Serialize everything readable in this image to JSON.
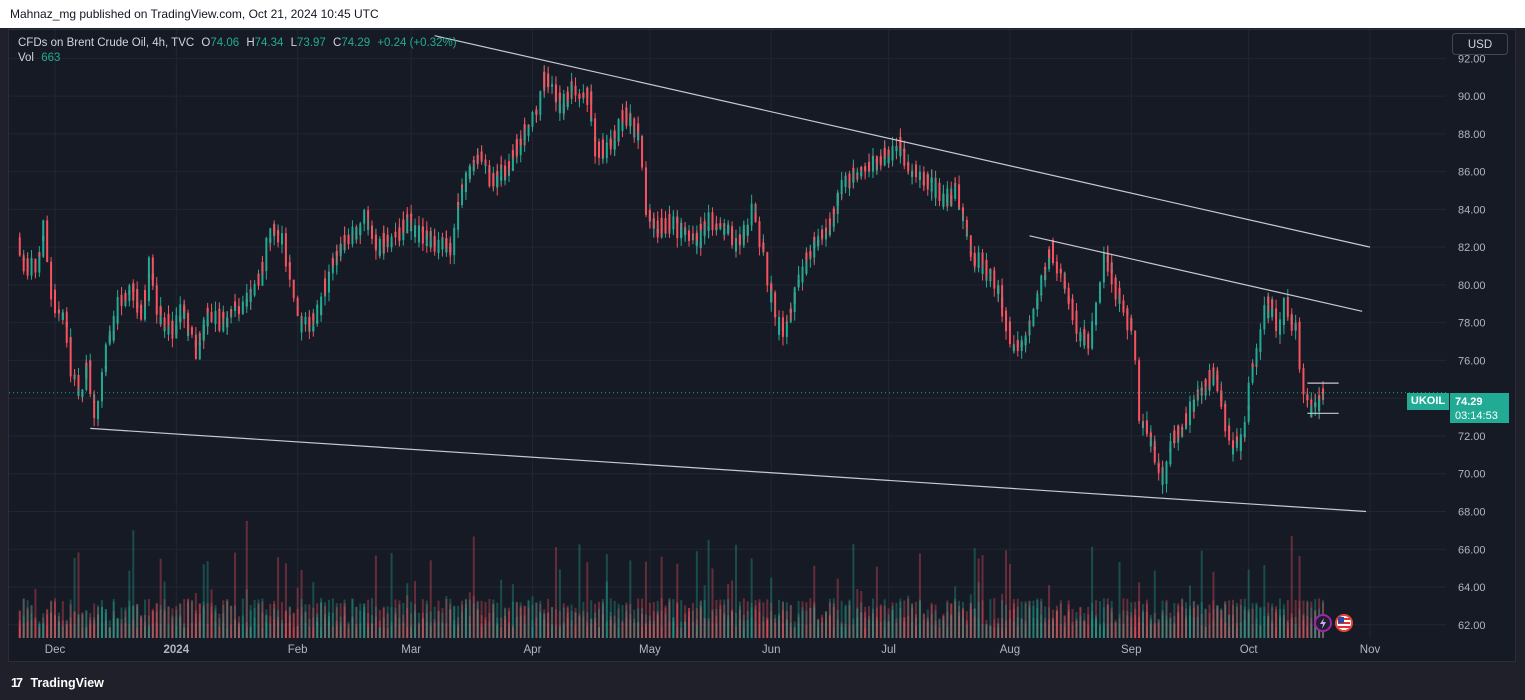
{
  "header": {
    "attribution": "Mahnaz_mg published on TradingView.com, Oct 21, 2024 10:45 UTC"
  },
  "legend": {
    "symbol": "CFDs on Brent Crude Oil, 4h, TVC",
    "open_label": "O",
    "open": "74.06",
    "high_label": "H",
    "high": "74.34",
    "low_label": "L",
    "low": "73.97",
    "close_label": "C",
    "close": "74.29",
    "change": "+0.24 (+0.32%)",
    "vol_label": "Vol",
    "vol": "663"
  },
  "toolbar": {
    "currency": "USD"
  },
  "price_label": {
    "ticker": "UKOIL",
    "price": "74.29",
    "countdown": "03:14:53"
  },
  "footer": {
    "brand": "TradingView"
  },
  "colors": {
    "up": "#22ab94",
    "down": "#f7525f",
    "background": "#161a25",
    "trendline": "#c8c8d0"
  },
  "icons": {
    "badge_1": "lightning-icon",
    "badge_2": "us-flag-icon"
  },
  "chart_data": {
    "type": "candlestick",
    "y_axis": {
      "ticks": [
        62,
        64,
        66,
        68,
        70,
        72,
        74,
        76,
        78,
        80,
        82,
        84,
        86,
        88,
        90,
        92
      ],
      "range": [
        61.3,
        93.5
      ],
      "position": "right"
    },
    "x_axis": {
      "ticks": [
        "Dec",
        "2024",
        "Feb",
        "Mar",
        "Apr",
        "May",
        "Jun",
        "Jul",
        "Aug",
        "Sep",
        "Oct",
        "Nov"
      ]
    },
    "last_price": 74.29,
    "price_path": [
      [
        "2023-11-22",
        82.5
      ],
      [
        "2023-11-24",
        81.0
      ],
      [
        "2023-11-27",
        80.8
      ],
      [
        "2023-11-29",
        83.3
      ],
      [
        "2023-12-01",
        79.2
      ],
      [
        "2023-12-04",
        78.5
      ],
      [
        "2023-12-06",
        75.5
      ],
      [
        "2023-12-08",
        74.2
      ],
      [
        "2023-12-10",
        75.8
      ],
      [
        "2023-12-12",
        73.0
      ],
      [
        "2023-12-14",
        75.5
      ],
      [
        "2023-12-16",
        77.5
      ],
      [
        "2023-12-19",
        79.5
      ],
      [
        "2023-12-21",
        79.8
      ],
      [
        "2023-12-24",
        78.5
      ],
      [
        "2023-12-26",
        81.0
      ],
      [
        "2023-12-28",
        78.5
      ],
      [
        "2024-01-01",
        77.5
      ],
      [
        "2024-01-03",
        78.5
      ],
      [
        "2024-01-07",
        76.5
      ],
      [
        "2024-01-10",
        78.8
      ],
      [
        "2024-01-13",
        78.0
      ],
      [
        "2024-01-16",
        78.5
      ],
      [
        "2024-01-19",
        79.0
      ],
      [
        "2024-01-23",
        80.5
      ],
      [
        "2024-01-26",
        83.0
      ],
      [
        "2024-01-29",
        82.5
      ],
      [
        "2024-02-02",
        77.8
      ],
      [
        "2024-02-06",
        78.0
      ],
      [
        "2024-02-08",
        79.5
      ],
      [
        "2024-02-12",
        82.0
      ],
      [
        "2024-02-15",
        82.5
      ],
      [
        "2024-02-19",
        83.5
      ],
      [
        "2024-02-22",
        82.0
      ],
      [
        "2024-02-26",
        82.5
      ],
      [
        "2024-03-01",
        83.3
      ],
      [
        "2024-03-05",
        82.5
      ],
      [
        "2024-03-08",
        82.0
      ],
      [
        "2024-03-12",
        82.0
      ],
      [
        "2024-03-15",
        85.3
      ],
      [
        "2024-03-19",
        87.0
      ],
      [
        "2024-03-22",
        85.5
      ],
      [
        "2024-03-26",
        86.0
      ],
      [
        "2024-03-29",
        87.5
      ],
      [
        "2024-04-03",
        89.5
      ],
      [
        "2024-04-05",
        91.0
      ],
      [
        "2024-04-09",
        89.5
      ],
      [
        "2024-04-12",
        90.5
      ],
      [
        "2024-04-16",
        90.0
      ],
      [
        "2024-04-18",
        87.0
      ],
      [
        "2024-04-22",
        87.5
      ],
      [
        "2024-04-25",
        89.0
      ],
      [
        "2024-04-29",
        88.0
      ],
      [
        "2024-05-01",
        84.0
      ],
      [
        "2024-05-03",
        83.0
      ],
      [
        "2024-05-07",
        83.3
      ],
      [
        "2024-05-10",
        82.8
      ],
      [
        "2024-05-14",
        82.5
      ],
      [
        "2024-05-17",
        83.5
      ],
      [
        "2024-05-21",
        82.8
      ],
      [
        "2024-05-24",
        82.0
      ],
      [
        "2024-05-28",
        84.0
      ],
      [
        "2024-05-31",
        81.5
      ],
      [
        "2024-06-03",
        78.0
      ],
      [
        "2024-06-05",
        77.5
      ],
      [
        "2024-06-08",
        79.8
      ],
      [
        "2024-06-12",
        82.0
      ],
      [
        "2024-06-16",
        82.8
      ],
      [
        "2024-06-20",
        85.5
      ],
      [
        "2024-06-24",
        86.0
      ],
      [
        "2024-06-27",
        86.3
      ],
      [
        "2024-07-01",
        86.8
      ],
      [
        "2024-07-04",
        87.5
      ],
      [
        "2024-07-08",
        86.0
      ],
      [
        "2024-07-12",
        85.3
      ],
      [
        "2024-07-16",
        84.5
      ],
      [
        "2024-07-19",
        85.0
      ],
      [
        "2024-07-23",
        81.5
      ],
      [
        "2024-07-26",
        81.0
      ],
      [
        "2024-07-30",
        79.5
      ],
      [
        "2024-08-02",
        77.0
      ],
      [
        "2024-08-05",
        76.5
      ],
      [
        "2024-08-08",
        79.0
      ],
      [
        "2024-08-12",
        82.0
      ],
      [
        "2024-08-15",
        80.5
      ],
      [
        "2024-08-19",
        77.5
      ],
      [
        "2024-08-22",
        77.0
      ],
      [
        "2024-08-26",
        81.5
      ],
      [
        "2024-08-29",
        79.5
      ],
      [
        "2024-09-02",
        77.5
      ],
      [
        "2024-09-04",
        73.0
      ],
      [
        "2024-09-06",
        72.0
      ],
      [
        "2024-09-10",
        69.5
      ],
      [
        "2024-09-12",
        72.0
      ],
      [
        "2024-09-16",
        72.8
      ],
      [
        "2024-09-19",
        74.5
      ],
      [
        "2024-09-23",
        75.3
      ],
      [
        "2024-09-25",
        73.5
      ],
      [
        "2024-09-27",
        71.5
      ],
      [
        "2024-09-30",
        71.8
      ],
      [
        "2024-10-03",
        76.0
      ],
      [
        "2024-10-07",
        79.5
      ],
      [
        "2024-10-09",
        77.0
      ],
      [
        "2024-10-11",
        79.0
      ],
      [
        "2024-10-14",
        77.5
      ],
      [
        "2024-10-16",
        74.0
      ],
      [
        "2024-10-18",
        73.3
      ],
      [
        "2024-10-21",
        74.29
      ]
    ],
    "trendlines": [
      {
        "name": "upper-channel-line",
        "from": [
          "2024-03-07",
          93.2
        ],
        "to": [
          "2024-11-01",
          82.0
        ]
      },
      {
        "name": "lower-channel-line",
        "from": [
          "2023-12-10",
          72.4
        ],
        "to": [
          "2024-10-31",
          68.0
        ]
      },
      {
        "name": "inner-resistance-line",
        "from": [
          "2024-08-06",
          82.6
        ],
        "to": [
          "2024-10-30",
          78.6
        ]
      },
      {
        "name": "range-top-line",
        "from": [
          "2024-10-16",
          74.8
        ],
        "to": [
          "2024-10-24",
          74.8
        ]
      },
      {
        "name": "range-bottom-line",
        "from": [
          "2024-10-16",
          73.2
        ],
        "to": [
          "2024-10-24",
          73.2
        ]
      }
    ]
  }
}
